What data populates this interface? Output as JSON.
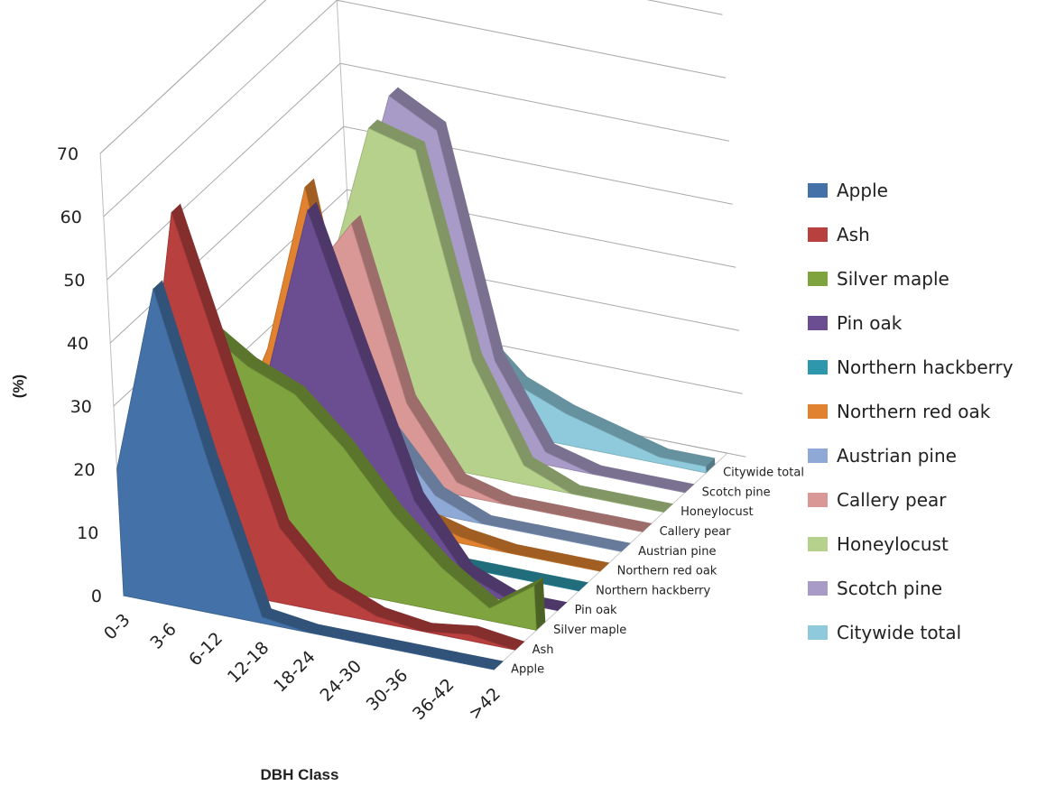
{
  "chart_data": {
    "type": "area",
    "view": "3d",
    "title": "",
    "xlabel": "DBH Class",
    "ylabel": "(%)",
    "ylim": [
      0,
      70
    ],
    "yticks": [
      "0",
      "10",
      "20",
      "30",
      "40",
      "50",
      "60",
      "70"
    ],
    "categories": [
      "0-3",
      "3-6",
      "6-12",
      "12-18",
      "18-24",
      "24-30",
      "30-36",
      "36-42",
      ">42"
    ],
    "grid": true,
    "legend_position": "right",
    "series": [
      {
        "name": "Apple",
        "color": "#4472A8",
        "values": [
          20,
          50,
          24,
          1,
          0,
          0,
          0,
          0,
          0
        ]
      },
      {
        "name": "Ash",
        "color": "#B8403E",
        "values": [
          13,
          59,
          35,
          12,
          4,
          1,
          0,
          1,
          0
        ]
      },
      {
        "name": "Silver maple",
        "color": "#7FA33E",
        "values": [
          18,
          38,
          33,
          30,
          23,
          14,
          7,
          2,
          7
        ]
      },
      {
        "name": "Pin oak",
        "color": "#6B4E92",
        "values": [
          6,
          15,
          30,
          56,
          34,
          13,
          3,
          0,
          0
        ]
      },
      {
        "name": "Northern hackberry",
        "color": "#2E97AC",
        "values": [
          17,
          24,
          15,
          5,
          1,
          0,
          0,
          0,
          0
        ]
      },
      {
        "name": "Northern red oak",
        "color": "#E0822F",
        "values": [
          8,
          25,
          52,
          12,
          3,
          1,
          0,
          0,
          0
        ]
      },
      {
        "name": "Austrian pine",
        "color": "#8FA9D6",
        "values": [
          8,
          20,
          26,
          12,
          3,
          0,
          0,
          0,
          0
        ]
      },
      {
        "name": "Callery pear",
        "color": "#D99795",
        "values": [
          10,
          30,
          40,
          13,
          2,
          0,
          0,
          0,
          0
        ]
      },
      {
        "name": "Honeylocust",
        "color": "#B5D18C",
        "values": [
          8,
          28,
          52,
          50,
          18,
          3,
          0,
          0,
          0
        ]
      },
      {
        "name": "Scotch pine",
        "color": "#A99BC8",
        "values": [
          10,
          30,
          54,
          50,
          15,
          2,
          0,
          0,
          0
        ]
      },
      {
        "name": "Citywide total",
        "color": "#8ECADC",
        "values": [
          5,
          14,
          24,
          15,
          8,
          5,
          3,
          1,
          1
        ]
      }
    ]
  }
}
